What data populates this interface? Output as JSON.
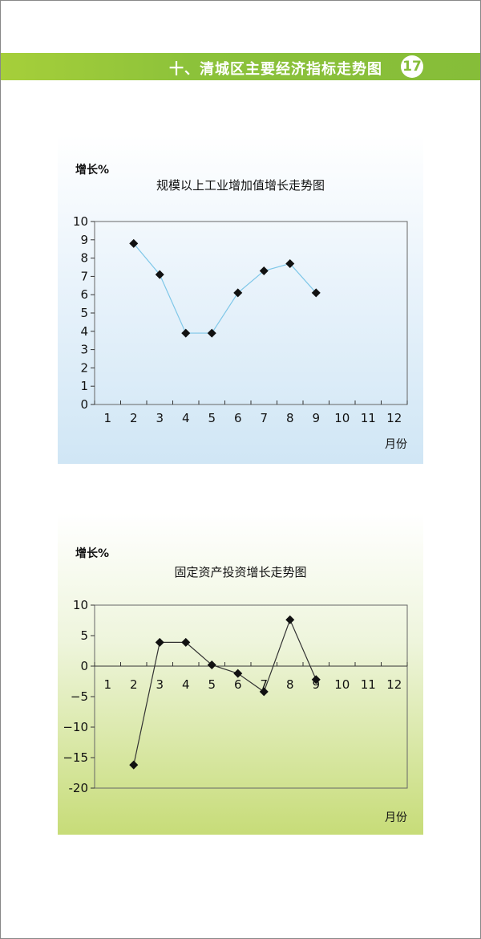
{
  "header": {
    "title": "十、清城区主要经济指标走势图",
    "page_number": "17",
    "accent_color": "#86bd39"
  },
  "chart_data": [
    {
      "type": "line",
      "title": "规模以上工业增加值增长走势图",
      "ylabel": "增长%",
      "xlabel": "月份",
      "categories": [
        "1",
        "2",
        "3",
        "4",
        "5",
        "6",
        "7",
        "8",
        "9",
        "10",
        "11",
        "12"
      ],
      "y_ticks": [
        "0",
        "1",
        "2",
        "3",
        "4",
        "5",
        "6",
        "7",
        "8",
        "9",
        "10"
      ],
      "ylim": [
        0,
        10
      ],
      "series": [
        {
          "values": [
            null,
            8.8,
            7.1,
            3.9,
            3.9,
            6.1,
            7.3,
            7.7,
            6.1,
            null,
            null,
            null
          ],
          "line_color": "#7fc7e8"
        }
      ],
      "grid": false,
      "background": "gradient-blue"
    },
    {
      "type": "line",
      "title": "固定资产投资增长走势图",
      "ylabel": "增长%",
      "xlabel": "月份",
      "categories": [
        "1",
        "2",
        "3",
        "4",
        "5",
        "6",
        "7",
        "8",
        "9",
        "10",
        "11",
        "12"
      ],
      "y_ticks": [
        "10",
        "5",
        "0",
        "−5",
        "−10",
        "−15",
        "-20"
      ],
      "ylim": [
        -20,
        10
      ],
      "series": [
        {
          "values": [
            null,
            -16.2,
            3.9,
            3.9,
            0.2,
            -1.2,
            -4.2,
            7.6,
            -2.2,
            null,
            null,
            null
          ],
          "line_color": "#333333"
        }
      ],
      "grid": false,
      "background": "gradient-green"
    }
  ]
}
